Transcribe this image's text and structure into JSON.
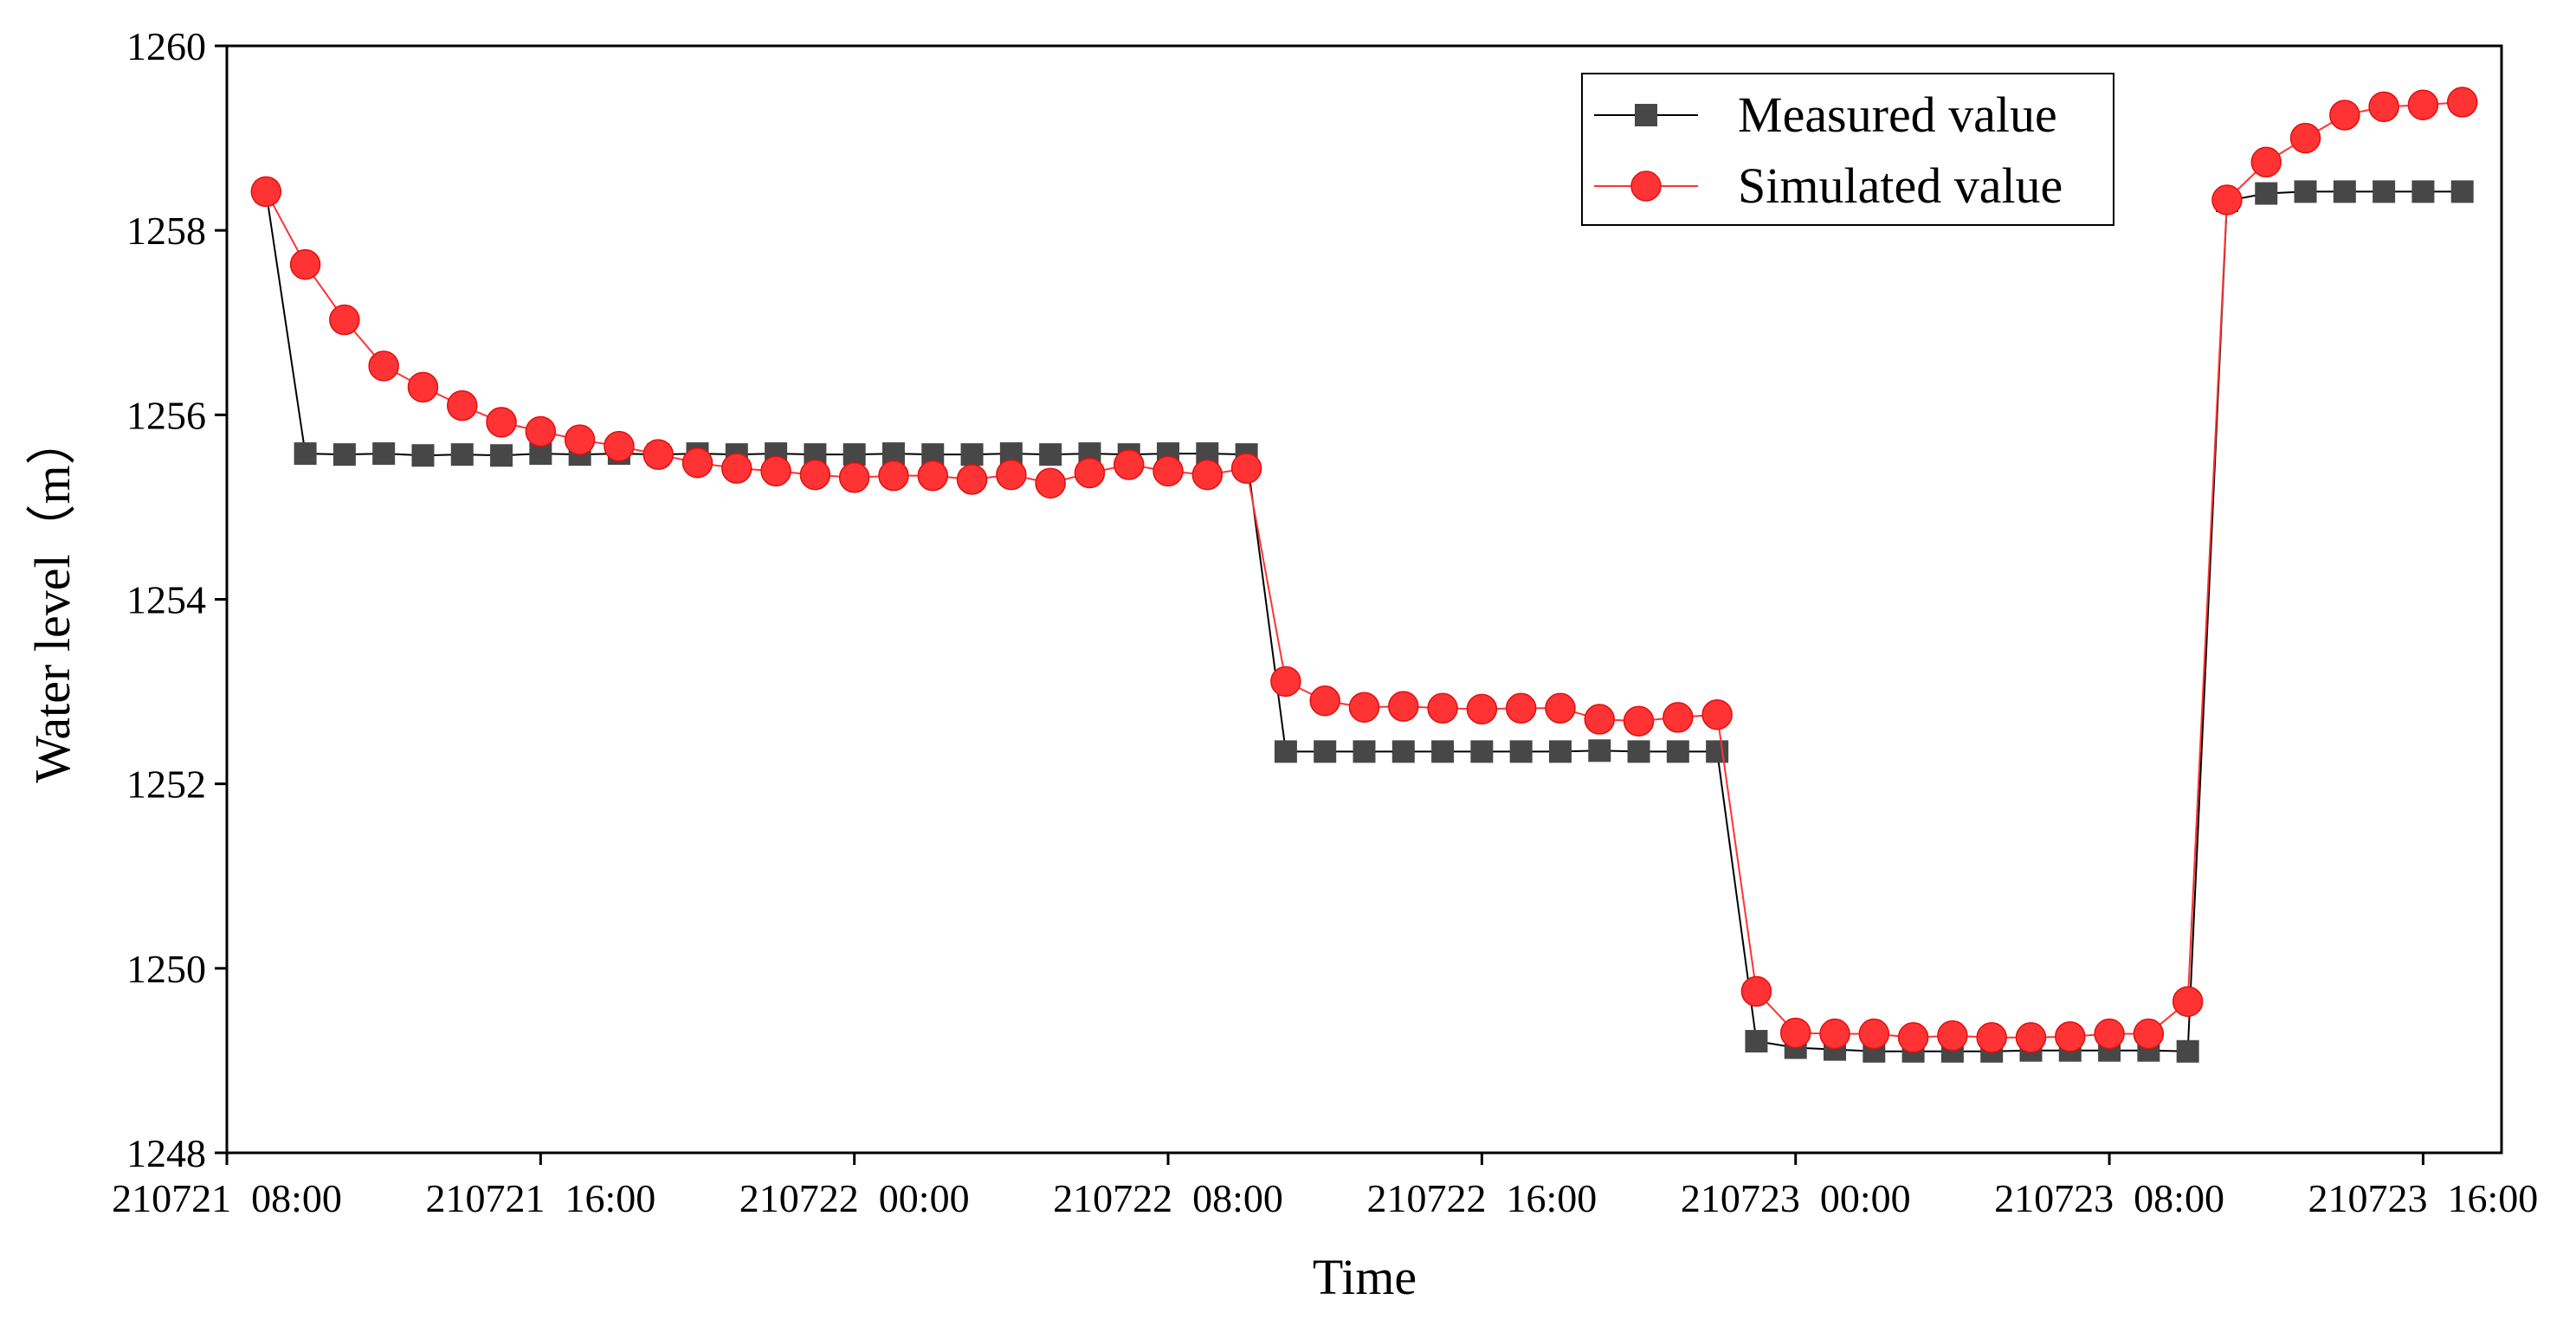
{
  "chart_data": {
    "type": "line",
    "xlabel": "Time",
    "ylabel": "Water level（m）",
    "xlim": [
      0,
      58
    ],
    "xticks": [
      {
        "value": 0,
        "label": "210721  08:00"
      },
      {
        "value": 8,
        "label": "210721  16:00"
      },
      {
        "value": 16,
        "label": "210722  00:00"
      },
      {
        "value": 24,
        "label": "210722  08:00"
      },
      {
        "value": 32,
        "label": "210722  16:00"
      },
      {
        "value": 40,
        "label": "210723  00:00"
      },
      {
        "value": 48,
        "label": "210723  08:00"
      },
      {
        "value": 56,
        "label": "210723  16:00"
      }
    ],
    "ylim": [
      1248,
      1260
    ],
    "yticks": [
      1248,
      1250,
      1252,
      1254,
      1256,
      1258,
      1260
    ],
    "legend": "upper right",
    "x": [
      1,
      2,
      3,
      4,
      5,
      6,
      7,
      8,
      9,
      10,
      11,
      12,
      13,
      14,
      15,
      16,
      17,
      18,
      19,
      20,
      21,
      22,
      23,
      24,
      25,
      26,
      27,
      28,
      29,
      30,
      31,
      32,
      33,
      34,
      35,
      36,
      37,
      38,
      39,
      40,
      41,
      42,
      43,
      44,
      45,
      46,
      47,
      48,
      49,
      50,
      51,
      52,
      53,
      54,
      55,
      56,
      57
    ],
    "series": [
      {
        "name": "Measured value",
        "color": "#474747",
        "marker": "square",
        "values": [
          1258.42,
          1255.58,
          1255.57,
          1255.58,
          1255.56,
          1255.57,
          1255.56,
          1255.58,
          1255.57,
          1255.58,
          1255.57,
          1255.58,
          1255.57,
          1255.58,
          1255.57,
          1255.57,
          1255.58,
          1255.57,
          1255.57,
          1255.58,
          1255.57,
          1255.58,
          1255.57,
          1255.58,
          1255.58,
          1255.57,
          1252.35,
          1252.35,
          1252.35,
          1252.35,
          1252.35,
          1252.35,
          1252.35,
          1252.35,
          1252.36,
          1252.35,
          1252.35,
          1252.35,
          1249.21,
          1249.14,
          1249.12,
          1249.1,
          1249.1,
          1249.1,
          1249.1,
          1249.11,
          1249.11,
          1249.11,
          1249.11,
          1249.1,
          1258.32,
          1258.4,
          1258.42,
          1258.42,
          1258.42,
          1258.42,
          1258.42
        ]
      },
      {
        "name": "Simulated value",
        "color": "#ff3333",
        "marker": "circle",
        "values": [
          1258.42,
          1257.63,
          1257.03,
          1256.53,
          1256.3,
          1256.1,
          1255.92,
          1255.82,
          1255.73,
          1255.66,
          1255.57,
          1255.48,
          1255.42,
          1255.39,
          1255.35,
          1255.32,
          1255.34,
          1255.34,
          1255.3,
          1255.35,
          1255.26,
          1255.37,
          1255.46,
          1255.39,
          1255.35,
          1255.42,
          1253.11,
          1252.9,
          1252.83,
          1252.84,
          1252.82,
          1252.81,
          1252.82,
          1252.82,
          1252.7,
          1252.68,
          1252.72,
          1252.75,
          1249.75,
          1249.3,
          1249.29,
          1249.29,
          1249.25,
          1249.27,
          1249.25,
          1249.25,
          1249.26,
          1249.29,
          1249.29,
          1249.64,
          1258.33,
          1258.74,
          1259.0,
          1259.25,
          1259.34,
          1259.36,
          1259.39
        ]
      }
    ]
  }
}
